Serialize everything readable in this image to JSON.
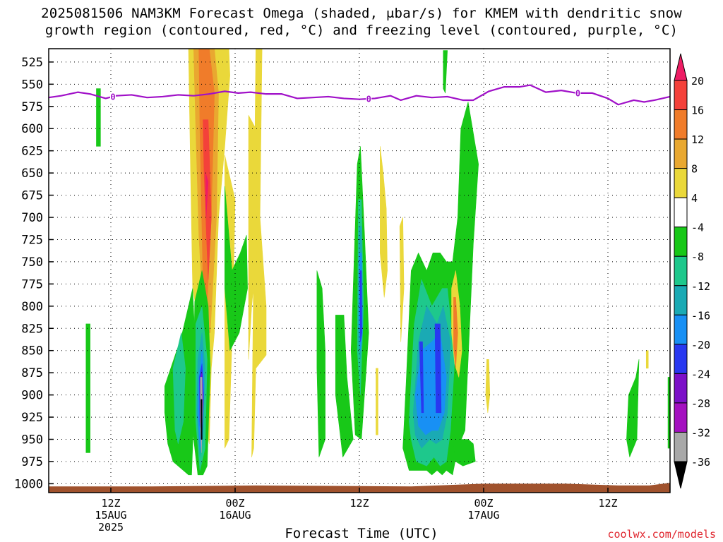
{
  "title_line1": "2025081506 NAM3KM Forecast Omega (shaded, μbar/s) for KMEM with dendritic snow",
  "title_line2": "growth region (contoured, red, °C) and freezing level (contoured, purple, °C)",
  "x_axis_label": "Forecast Time (UTC)",
  "credit": "coolwx.com/models",
  "chart_data": {
    "type": "heatmap",
    "title": "2025081506 NAM3KM Forecast Omega (shaded, μbar/s) for KMEM with dendritic snow growth region (contoured, red, °C) and freezing level (contoured, purple, °C)",
    "xlabel": "Forecast Time (UTC)",
    "ylabel": "",
    "y_units": "hPa",
    "x_units": "hours since 2025-08-15 06Z",
    "xlim": [
      0,
      60
    ],
    "ylim": [
      1010,
      510
    ],
    "y_ticks": [
      525,
      550,
      575,
      600,
      625,
      650,
      675,
      700,
      725,
      750,
      775,
      800,
      825,
      850,
      875,
      900,
      925,
      950,
      975,
      1000
    ],
    "x_ticks": [
      {
        "x": 6,
        "line1": "12Z",
        "line2": "15AUG",
        "line3": "2025"
      },
      {
        "x": 18,
        "line1": "00Z",
        "line2": "16AUG",
        "line3": ""
      },
      {
        "x": 30,
        "line1": "12Z",
        "line2": "",
        "line3": ""
      },
      {
        "x": 42,
        "line1": "00Z",
        "line2": "17AUG",
        "line3": ""
      },
      {
        "x": 54,
        "line1": "12Z",
        "line2": "",
        "line3": ""
      }
    ],
    "grid": true,
    "colorbar": {
      "labels": [
        "20",
        "16",
        "12",
        "8",
        "4",
        "-4",
        "-8",
        "-12",
        "-16",
        "-20",
        "-24",
        "-28",
        "-32",
        "-36"
      ],
      "bins": [
        {
          "color": "#ee1c64",
          "kind": "tri-top"
        },
        {
          "color": "#f4413a"
        },
        {
          "color": "#f07c2a"
        },
        {
          "color": "#e9a830"
        },
        {
          "color": "#ead83a"
        },
        {
          "color": "#ffffff"
        },
        {
          "color": "#18c818"
        },
        {
          "color": "#1ec88c"
        },
        {
          "color": "#1aaab4"
        },
        {
          "color": "#1890f4"
        },
        {
          "color": "#2838f0"
        },
        {
          "color": "#7c10c8"
        },
        {
          "color": "#a410c0"
        },
        {
          "color": "#a8a8a8"
        },
        {
          "color": "#000000",
          "kind": "tri-bottom"
        }
      ]
    },
    "freezing_level": {
      "label": "0",
      "color": "#a010c8",
      "label_x": [
        6.2,
        30.9,
        51.1
      ],
      "x": [
        0,
        1.2,
        2.8,
        4.0,
        5.5,
        6.5,
        8.0,
        9.5,
        11.0,
        12.5,
        14.0,
        15.5,
        17.0,
        18.3,
        19.5,
        21.0,
        22.5,
        24.0,
        25.5,
        27.0,
        28.5,
        30.0,
        31.5,
        33.0,
        34.0,
        35.5,
        37.0,
        38.5,
        40.0,
        41.0,
        42.5,
        44.0,
        45.5,
        46.5,
        48.0,
        49.5,
        51.0,
        52.5,
        54.0,
        55.0,
        56.5,
        57.5,
        58.5,
        60.0
      ],
      "y": [
        565,
        563,
        559,
        561,
        566,
        563,
        562,
        565,
        564,
        562,
        563,
        561,
        558,
        560,
        559,
        561,
        561,
        566,
        565,
        564,
        566,
        567,
        566,
        563,
        568,
        563,
        565,
        564,
        568,
        568,
        558,
        553,
        553,
        551,
        559,
        557,
        560,
        560,
        566,
        573,
        568,
        570,
        568,
        564
      ]
    },
    "ground": {
      "color": "#a0522d",
      "x": [
        0,
        10,
        20,
        35,
        42,
        50,
        55,
        58,
        60
      ],
      "y": [
        1003,
        1003,
        1002,
        1003,
        1000,
        1000,
        1002,
        1002,
        999
      ]
    },
    "omega_regions": [
      {
        "color": "#18c818",
        "x": [
          15.3,
          16.0,
          16.0,
          15.3
        ],
        "y": [
          515,
          515,
          600,
          610
        ]
      },
      {
        "color": "#18c818",
        "x": [
          4.6,
          5.0,
          5.0,
          4.6
        ],
        "y": [
          555,
          555,
          620,
          620
        ]
      },
      {
        "color": "#18c818",
        "x": [
          3.6,
          4.0,
          4.0,
          3.6
        ],
        "y": [
          820,
          820,
          965,
          965
        ]
      },
      {
        "color": "#ead83a",
        "x": [
          13.5,
          17.4,
          17.5,
          17.0,
          16.4,
          16.0,
          15.7,
          15.5,
          15.0,
          14.5,
          13.9,
          13.7
        ],
        "y": [
          510,
          510,
          540,
          620,
          700,
          830,
          870,
          955,
          920,
          820,
          780,
          650
        ]
      },
      {
        "color": "#ead83a",
        "x": [
          17.0,
          18.0,
          17.8,
          17.4,
          17.0
        ],
        "y": [
          630,
          680,
          800,
          950,
          960
        ]
      },
      {
        "color": "#ead83a",
        "x": [
          20.0,
          20.6,
          20.4,
          21.0,
          21.0,
          20.0,
          19.8,
          19.6
        ],
        "y": [
          510,
          510,
          700,
          800,
          855,
          870,
          960,
          970
        ]
      },
      {
        "color": "#ead83a",
        "x": [
          19.3,
          20.0,
          20.4,
          19.6,
          19.3
        ],
        "y": [
          585,
          600,
          700,
          800,
          860
        ]
      },
      {
        "color": "#e9a830",
        "x": [
          14.0,
          16.0,
          16.4,
          16.2,
          15.6,
          15.0,
          14.5,
          14.2
        ],
        "y": [
          510,
          510,
          560,
          700,
          830,
          830,
          720,
          600
        ]
      },
      {
        "color": "#f07c2a",
        "x": [
          14.5,
          15.5,
          16.0,
          15.7,
          15.2,
          14.9,
          14.6
        ],
        "y": [
          510,
          510,
          560,
          700,
          820,
          770,
          600
        ]
      },
      {
        "color": "#f4413a",
        "x": [
          14.9,
          15.4,
          15.7,
          15.4,
          15.0
        ],
        "y": [
          590,
          590,
          700,
          770,
          650
        ]
      },
      {
        "color": "#ee1c64",
        "x": [
          15.15,
          15.4,
          15.2
        ],
        "y": [
          650,
          660,
          700
        ]
      },
      {
        "color": "#18c818",
        "x": [
          17.0,
          17.7,
          18.5,
          19.1,
          19.2,
          18.4,
          17.5,
          17.0
        ],
        "y": [
          665,
          760,
          740,
          720,
          780,
          830,
          850,
          780
        ]
      },
      {
        "color": "#18c818",
        "x": [
          11.2,
          12.8,
          13.9,
          14.2,
          13.8,
          13.5,
          12.0,
          11.5,
          11.2
        ],
        "y": [
          890,
          835,
          780,
          860,
          990,
          990,
          975,
          955,
          920
        ]
      },
      {
        "color": "#1ec88c",
        "x": [
          12.0,
          12.8,
          13.2,
          13.0,
          12.5,
          12.2
        ],
        "y": [
          870,
          830,
          870,
          930,
          955,
          940
        ]
      },
      {
        "color": "#18c818",
        "x": [
          14.1,
          14.8,
          15.4,
          15.6,
          15.3,
          14.9,
          14.4,
          13.9
        ],
        "y": [
          795,
          760,
          800,
          870,
          980,
          990,
          990,
          940
        ]
      },
      {
        "color": "#1ec88c",
        "x": [
          14.2,
          14.8,
          15.3,
          15.1,
          14.6,
          14.2
        ],
        "y": [
          820,
          800,
          860,
          960,
          985,
          930
        ]
      },
      {
        "color": "#1aaab4",
        "x": [
          14.4,
          14.8,
          15.1,
          14.9,
          14.6,
          14.3
        ],
        "y": [
          860,
          830,
          870,
          950,
          970,
          920
        ]
      },
      {
        "color": "#1890f4",
        "x": [
          14.5,
          14.8,
          15.0,
          14.8,
          14.6,
          14.4
        ],
        "y": [
          880,
          850,
          890,
          950,
          960,
          920
        ]
      },
      {
        "color": "#2838f0",
        "x": [
          14.55,
          14.8,
          14.95,
          14.8,
          14.6
        ],
        "y": [
          880,
          865,
          900,
          945,
          935
        ]
      },
      {
        "color": "#7c10c8",
        "x": [
          14.6,
          14.8,
          14.9,
          14.75,
          14.6
        ],
        "y": [
          885,
          875,
          910,
          940,
          930
        ]
      },
      {
        "color": "#a8a8a8",
        "x": [
          14.65,
          14.8,
          14.85,
          14.75,
          14.65
        ],
        "y": [
          880,
          880,
          920,
          965,
          940
        ]
      },
      {
        "color": "#000000",
        "x": [
          14.7,
          14.8,
          14.82,
          14.72
        ],
        "y": [
          905,
          905,
          950,
          950
        ]
      },
      {
        "color": "#18c818",
        "x": [
          25.9,
          26.4,
          26.7,
          26.7,
          26.1,
          25.9
        ],
        "y": [
          760,
          780,
          850,
          950,
          970,
          870
        ]
      },
      {
        "color": "#18c818",
        "x": [
          27.7,
          28.5,
          28.8,
          29.4,
          28.4,
          27.7
        ],
        "y": [
          810,
          810,
          880,
          950,
          970,
          900
        ]
      },
      {
        "color": "#18c818",
        "x": [
          29.8,
          30.1,
          30.5,
          30.9,
          30.2,
          29.6,
          29.2
        ],
        "y": [
          640,
          620,
          720,
          830,
          950,
          945,
          850
        ]
      },
      {
        "color": "#1ec88c",
        "x": [
          29.9,
          30.2,
          30.4,
          30.1,
          29.8
        ],
        "y": [
          680,
          680,
          800,
          900,
          850
        ]
      },
      {
        "color": "#1aaab4",
        "x": [
          29.95,
          30.2,
          30.35,
          30.1,
          29.9
        ],
        "y": [
          710,
          710,
          820,
          860,
          840
        ]
      },
      {
        "color": "#1890f4",
        "x": [
          30.0,
          30.2,
          30.3,
          30.1,
          29.95
        ],
        "y": [
          740,
          740,
          830,
          850,
          820
        ]
      },
      {
        "color": "#2838f0",
        "x": [
          30.05,
          30.2,
          30.25,
          30.1
        ],
        "y": [
          760,
          760,
          830,
          840
        ]
      },
      {
        "color": "#ead83a",
        "x": [
          32.0,
          32.3,
          32.6,
          32.7,
          32.4,
          32.0
        ],
        "y": [
          620,
          650,
          690,
          760,
          790,
          740
        ]
      },
      {
        "color": "#ead83a",
        "x": [
          33.9,
          34.2,
          34.3,
          34.0
        ],
        "y": [
          710,
          700,
          780,
          840
        ]
      },
      {
        "color": "#ead83a",
        "x": [
          31.6,
          31.8,
          31.8,
          31.6
        ],
        "y": [
          870,
          870,
          945,
          945
        ]
      },
      {
        "color": "#18c818",
        "x": [
          34.5,
          35.0,
          35.7,
          36.5,
          37.1,
          37.8,
          38.4,
          39.0,
          39.5,
          39.8,
          40.5,
          41.5,
          41.0,
          40.2,
          39.5,
          39.0,
          38.4,
          38.0,
          37.5,
          37.0,
          36.5,
          35.8,
          34.8,
          34.2
        ],
        "y": [
          890,
          760,
          740,
          760,
          740,
          740,
          750,
          750,
          700,
          600,
          570,
          640,
          730,
          940,
          960,
          990,
          985,
          990,
          985,
          990,
          985,
          985,
          985,
          960
        ]
      },
      {
        "color": "#1ec88c",
        "x": [
          34.8,
          35.3,
          36.0,
          37.0,
          38.0,
          38.5,
          39.2,
          38.8,
          38.4,
          37.8,
          37.2,
          36.5,
          35.5,
          35.0
        ],
        "y": [
          930,
          820,
          770,
          800,
          780,
          780,
          860,
          940,
          975,
          980,
          970,
          980,
          975,
          950
        ]
      },
      {
        "color": "#1aaab4",
        "x": [
          35.2,
          35.7,
          36.5,
          37.5,
          38.1,
          38.8,
          38.5,
          38.0,
          37.4,
          36.8,
          36.0,
          35.4
        ],
        "y": [
          920,
          840,
          800,
          820,
          800,
          840,
          920,
          950,
          955,
          950,
          960,
          945
        ]
      },
      {
        "color": "#1890f4",
        "x": [
          35.4,
          36.0,
          37.0,
          37.8,
          38.4,
          38.2,
          37.6,
          37.0,
          36.4,
          35.7
        ],
        "y": [
          900,
          850,
          840,
          830,
          880,
          920,
          940,
          940,
          945,
          935
        ]
      },
      {
        "color": "#2838f0",
        "x": [
          35.8,
          36.1,
          36.2,
          36.0
        ],
        "y": [
          840,
          840,
          920,
          920
        ]
      },
      {
        "color": "#2838f0",
        "x": [
          37.3,
          37.8,
          37.9,
          37.4
        ],
        "y": [
          820,
          820,
          920,
          920
        ]
      },
      {
        "color": "#18c818",
        "x": [
          39.0,
          40.5,
          41.0,
          41.2,
          40.0,
          39.3
        ],
        "y": [
          950,
          950,
          955,
          975,
          980,
          975
        ]
      },
      {
        "color": "#ead83a",
        "x": [
          38.9,
          39.3,
          39.7,
          39.9,
          39.6,
          39.2,
          38.9
        ],
        "y": [
          780,
          760,
          800,
          850,
          880,
          865,
          830
        ]
      },
      {
        "color": "#f07c2a",
        "x": [
          39.1,
          39.3,
          39.5,
          39.3,
          39.1
        ],
        "y": [
          790,
          790,
          830,
          870,
          845
        ]
      },
      {
        "color": "#ead83a",
        "x": [
          42.3,
          42.5,
          42.6,
          42.4,
          42.2
        ],
        "y": [
          860,
          860,
          900,
          920,
          900
        ]
      },
      {
        "color": "#18c818",
        "x": [
          38.1,
          38.5,
          38.3,
          38.1
        ],
        "y": [
          512,
          512,
          560,
          555
        ]
      },
      {
        "color": "#18c818",
        "x": [
          56.0,
          56.7,
          57.0,
          56.8,
          56.1,
          55.8
        ],
        "y": [
          900,
          880,
          860,
          950,
          970,
          950
        ]
      },
      {
        "color": "#ead83a",
        "x": [
          57.7,
          57.9,
          57.9,
          57.7
        ],
        "y": [
          850,
          850,
          870,
          870
        ]
      },
      {
        "color": "#18c818",
        "x": [
          59.8,
          60.0,
          60.0,
          59.8
        ],
        "y": [
          880,
          880,
          960,
          960
        ]
      }
    ]
  }
}
